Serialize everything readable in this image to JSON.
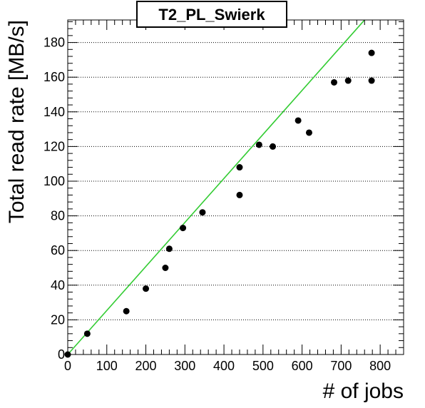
{
  "chart_data": {
    "type": "scatter",
    "title": "T2_PL_Swierk",
    "xlabel": "# of jobs",
    "ylabel": "Total read rate [MB/s]",
    "xlim": [
      0,
      860
    ],
    "ylim": [
      0,
      193
    ],
    "x_ticks": [
      "0",
      "100",
      "200",
      "300",
      "400",
      "500",
      "600",
      "700",
      "800"
    ],
    "y_ticks": [
      "0",
      "20",
      "40",
      "60",
      "80",
      "100",
      "120",
      "140",
      "160",
      "180"
    ],
    "grid": "horizontal dotted",
    "colors": {
      "points": "#000000",
      "fit_line": "#33cc33"
    },
    "points": [
      {
        "x": 0,
        "y": 0
      },
      {
        "x": 50,
        "y": 12
      },
      {
        "x": 150,
        "y": 25
      },
      {
        "x": 200,
        "y": 38
      },
      {
        "x": 250,
        "y": 50
      },
      {
        "x": 260,
        "y": 61
      },
      {
        "x": 295,
        "y": 73
      },
      {
        "x": 345,
        "y": 82
      },
      {
        "x": 440,
        "y": 92
      },
      {
        "x": 440,
        "y": 108
      },
      {
        "x": 490,
        "y": 121
      },
      {
        "x": 525,
        "y": 120
      },
      {
        "x": 590,
        "y": 135
      },
      {
        "x": 618,
        "y": 128
      },
      {
        "x": 682,
        "y": 157
      },
      {
        "x": 718,
        "y": 158
      },
      {
        "x": 778,
        "y": 158
      },
      {
        "x": 778,
        "y": 174
      }
    ],
    "fit_line": {
      "x": [
        0,
        760
      ],
      "y": [
        0,
        193
      ]
    }
  }
}
